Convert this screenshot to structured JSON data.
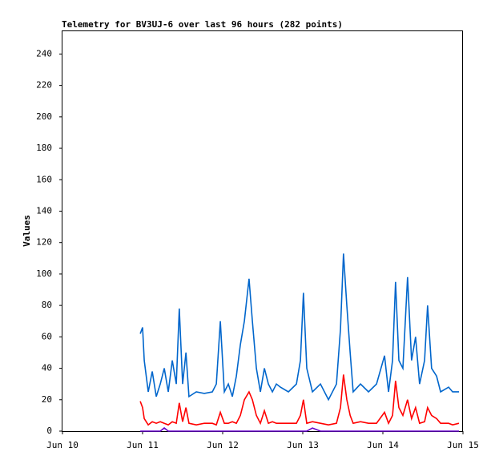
{
  "chart_data": {
    "type": "line",
    "title": "Telemetry for BV3UJ-6 over last 96 hours (282 points)",
    "y_label": "Values",
    "x": [
      23.3,
      24,
      24.5,
      25.7,
      26.9,
      28.1,
      29.3,
      30.5,
      31.7,
      32.9,
      34.1,
      35,
      36,
      37,
      37.9,
      40.1,
      42.5,
      44.9,
      46.1,
      47.3,
      48.5,
      49.7,
      50.9,
      52.1,
      53.3,
      54.5,
      55.9,
      56.9,
      58.1,
      59.3,
      60.5,
      61.7,
      62.9,
      64.1,
      65.3,
      67.7,
      70.1,
      71.3,
      72.2,
      73.2,
      74.9,
      77.3,
      79.7,
      82.1,
      83.3,
      84.2,
      85.2,
      86.2,
      87.1,
      89.3,
      91.7,
      94.1,
      96.5,
      97.7,
      98.9,
      99.8,
      100.8,
      102,
      103.4,
      104.6,
      105.8,
      107,
      108.5,
      109.4,
      110.6,
      112.1,
      113.3,
      115.7,
      116.9,
      118.8
    ],
    "series": [
      {
        "color": "#0066cc",
        "values": [
          62,
          66,
          45,
          25,
          38,
          22,
          30,
          40,
          25,
          45,
          30,
          78,
          30,
          50,
          22,
          25,
          24,
          25,
          30,
          70,
          25,
          30,
          22,
          35,
          55,
          70,
          97,
          70,
          40,
          25,
          40,
          30,
          25,
          30,
          28,
          25,
          30,
          45,
          88,
          40,
          25,
          30,
          20,
          30,
          65,
          113,
          80,
          50,
          25,
          30,
          25,
          30,
          48,
          25,
          45,
          95,
          45,
          40,
          98,
          45,
          60,
          30,
          45,
          80,
          40,
          35,
          25,
          28,
          25,
          25
        ]
      },
      {
        "color": "#ff0000",
        "values": [
          19,
          15,
          8,
          4,
          6,
          5,
          6,
          5,
          4,
          6,
          5,
          18,
          6,
          15,
          5,
          4,
          5,
          5,
          4,
          12,
          5,
          5,
          6,
          5,
          10,
          20,
          25,
          20,
          10,
          5,
          13,
          5,
          6,
          5,
          5,
          5,
          5,
          10,
          20,
          5,
          6,
          5,
          4,
          5,
          15,
          36,
          20,
          10,
          5,
          6,
          5,
          5,
          12,
          5,
          10,
          32,
          15,
          10,
          20,
          8,
          15,
          5,
          6,
          15,
          10,
          8,
          5,
          5,
          4,
          5
        ]
      },
      {
        "color": "#6600cc",
        "values": [
          0,
          0,
          0,
          0,
          0,
          0,
          0,
          2,
          0,
          0,
          0,
          0,
          0,
          0,
          0,
          0,
          0,
          0,
          0,
          0,
          0,
          0,
          0,
          0,
          0,
          0,
          0,
          0,
          0,
          0,
          0,
          0,
          0,
          0,
          0,
          0,
          0,
          0,
          0,
          0,
          2,
          0,
          0,
          0,
          0,
          0,
          0,
          0,
          0,
          0,
          0,
          0,
          0,
          0,
          0,
          0,
          0,
          0,
          0,
          0,
          0,
          0,
          0,
          0,
          0,
          0,
          0,
          0,
          0,
          0
        ]
      }
    ],
    "xlim": [
      0,
      120
    ],
    "xticks": [
      {
        "value": 0,
        "label": "Jun 10"
      },
      {
        "value": 24,
        "label": "Jun 11"
      },
      {
        "value": 48,
        "label": "Jun 12"
      },
      {
        "value": 72,
        "label": "Jun 13"
      },
      {
        "value": 96,
        "label": "Jun 14"
      },
      {
        "value": 120,
        "label": "Jun 15"
      }
    ],
    "ylim": [
      0,
      255
    ],
    "yticks": [
      0,
      20,
      40,
      60,
      80,
      100,
      120,
      140,
      160,
      180,
      200,
      220,
      240
    ]
  }
}
